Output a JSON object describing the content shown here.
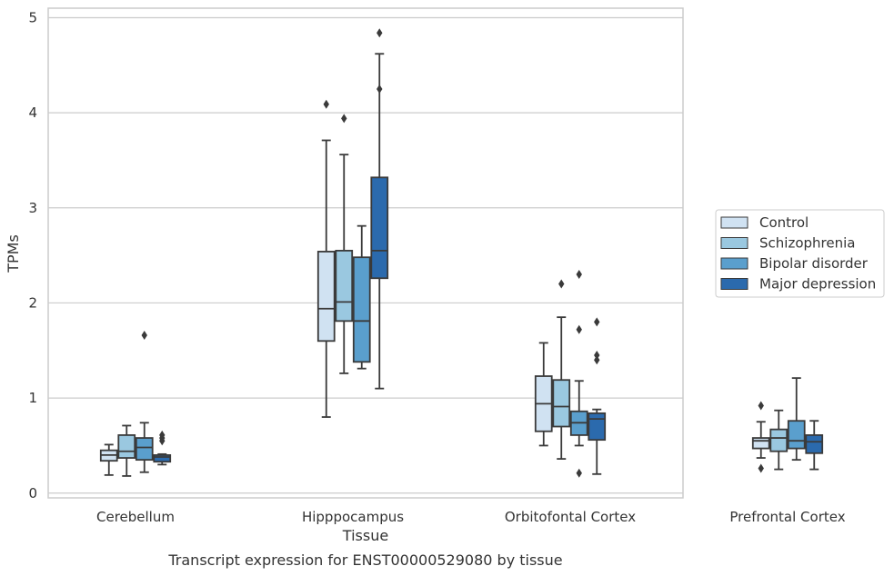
{
  "chart_data": {
    "type": "box",
    "title": "",
    "caption": "Transcript expression for ENST00000529080 by tissue",
    "xlabel": "Tissue",
    "ylabel": "TPMs",
    "ylim": [
      -0.05,
      5.1
    ],
    "yticks": [
      0,
      1,
      2,
      3,
      4,
      5
    ],
    "grid": "horizontal",
    "legend_position": "right",
    "categories": [
      "Cerebellum",
      "Hipppocampus",
      "Orbitofontal Cortex",
      "Prefrontal Cortex"
    ],
    "series": [
      {
        "name": "Control",
        "color": "#d0e2f2",
        "boxes": [
          {
            "whisker_low": 0.19,
            "q1": 0.34,
            "median": 0.4,
            "q3": 0.45,
            "whisker_high": 0.51,
            "outliers": []
          },
          {
            "whisker_low": 0.8,
            "q1": 1.6,
            "median": 1.94,
            "q3": 2.54,
            "whisker_high": 3.71,
            "outliers": [
              4.09
            ]
          },
          {
            "whisker_low": 0.5,
            "q1": 0.65,
            "median": 0.94,
            "q3": 1.23,
            "whisker_high": 1.58,
            "outliers": []
          },
          {
            "whisker_low": 0.37,
            "q1": 0.47,
            "median": 0.55,
            "q3": 0.58,
            "whisker_high": 0.75,
            "outliers": [
              0.26,
              0.92
            ]
          }
        ]
      },
      {
        "name": "Schizophrenia",
        "color": "#9ac8e0",
        "boxes": [
          {
            "whisker_low": 0.18,
            "q1": 0.37,
            "median": 0.44,
            "q3": 0.61,
            "whisker_high": 0.71,
            "outliers": []
          },
          {
            "whisker_low": 1.26,
            "q1": 1.81,
            "median": 2.01,
            "q3": 2.55,
            "whisker_high": 3.56,
            "outliers": [
              3.94
            ]
          },
          {
            "whisker_low": 0.36,
            "q1": 0.7,
            "median": 0.91,
            "q3": 1.19,
            "whisker_high": 1.85,
            "outliers": [
              2.2
            ]
          },
          {
            "whisker_low": 0.25,
            "q1": 0.44,
            "median": 0.58,
            "q3": 0.67,
            "whisker_high": 0.87,
            "outliers": []
          }
        ]
      },
      {
        "name": "Bipolar disorder",
        "color": "#5a9fcd",
        "boxes": [
          {
            "whisker_low": 0.22,
            "q1": 0.35,
            "median": 0.48,
            "q3": 0.58,
            "whisker_high": 0.74,
            "outliers": [
              1.66
            ]
          },
          {
            "whisker_low": 1.31,
            "q1": 1.38,
            "median": 1.81,
            "q3": 2.48,
            "whisker_high": 2.81,
            "outliers": []
          },
          {
            "whisker_low": 0.5,
            "q1": 0.61,
            "median": 0.74,
            "q3": 0.86,
            "whisker_high": 1.18,
            "outliers": [
              0.21,
              1.72,
              2.3
            ]
          },
          {
            "whisker_low": 0.35,
            "q1": 0.47,
            "median": 0.55,
            "q3": 0.76,
            "whisker_high": 1.21,
            "outliers": []
          }
        ]
      },
      {
        "name": "Major depression",
        "color": "#2b6aad",
        "boxes": [
          {
            "whisker_low": 0.3,
            "q1": 0.33,
            "median": 0.38,
            "q3": 0.4,
            "whisker_high": 0.41,
            "outliers": [
              0.55,
              0.58,
              0.61
            ]
          },
          {
            "whisker_low": 1.1,
            "q1": 2.26,
            "median": 2.55,
            "q3": 3.32,
            "whisker_high": 4.62,
            "outliers": [
              4.25,
              4.84
            ]
          },
          {
            "whisker_low": 0.2,
            "q1": 0.56,
            "median": 0.78,
            "q3": 0.84,
            "whisker_high": 0.88,
            "outliers": [
              1.4,
              1.45,
              1.8
            ]
          },
          {
            "whisker_low": 0.25,
            "q1": 0.42,
            "median": 0.54,
            "q3": 0.61,
            "whisker_high": 0.76,
            "outliers": []
          }
        ]
      }
    ]
  }
}
